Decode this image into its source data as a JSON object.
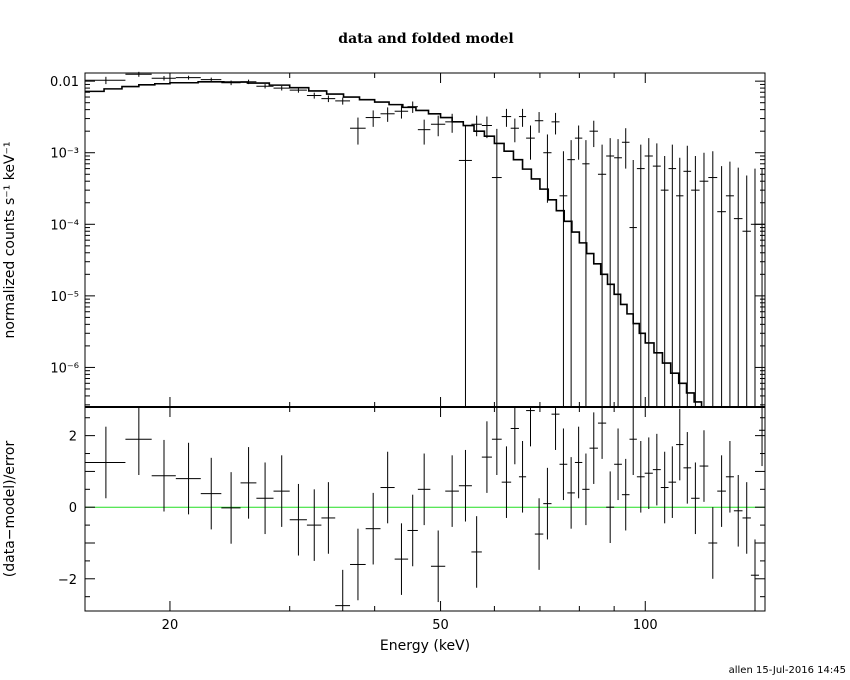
{
  "title": "data and folded model",
  "footer": "allen 15-Jul-2016 14:45",
  "chart_data": [
    {
      "type": "line",
      "panel": "top",
      "title": "data and folded model",
      "ylabel": "normalized counts s⁻¹ keV⁻¹",
      "xlabel": "",
      "xscale": "log",
      "yscale": "log",
      "xlim": [
        15,
        150
      ],
      "ylim": [
        2.8e-07,
        0.013
      ],
      "ytick_labels": [
        "0.01",
        "10⁻³",
        "10⁻⁴",
        "10⁻⁵",
        "10⁻⁶"
      ],
      "series": [
        {
          "kind": "data",
          "points": [
            {
              "x": 16.1,
              "xerr": 1.1,
              "y": 0.0103,
              "yerr": 0.0012
            },
            {
              "x": 18.0,
              "xerr": 0.8,
              "y": 0.0125,
              "yerr": 0.001
            },
            {
              "x": 19.6,
              "xerr": 0.8,
              "y": 0.011,
              "yerr": 0.0008
            },
            {
              "x": 21.3,
              "xerr": 0.9,
              "y": 0.0112,
              "yerr": 0.0007
            },
            {
              "x": 23.0,
              "xerr": 0.8,
              "y": 0.0105,
              "yerr": 0.0007
            },
            {
              "x": 24.6,
              "xerr": 0.8,
              "y": 0.0095,
              "yerr": 0.0007
            },
            {
              "x": 26.1,
              "xerr": 0.7,
              "y": 0.0098,
              "yerr": 0.0007
            },
            {
              "x": 27.6,
              "xerr": 0.8,
              "y": 0.0085,
              "yerr": 0.0006
            },
            {
              "x": 29.2,
              "xerr": 0.8,
              "y": 0.008,
              "yerr": 0.0006
            },
            {
              "x": 30.9,
              "xerr": 0.9,
              "y": 0.0075,
              "yerr": 0.0006
            },
            {
              "x": 32.6,
              "xerr": 0.8,
              "y": 0.0063,
              "yerr": 0.0006
            },
            {
              "x": 34.2,
              "xerr": 0.8,
              "y": 0.0057,
              "yerr": 0.0006
            },
            {
              "x": 35.9,
              "xerr": 0.9,
              "y": 0.0053,
              "yerr": 0.0006
            },
            {
              "x": 37.8,
              "xerr": 1.0,
              "y": 0.0022,
              "yerr": 0.0009
            },
            {
              "x": 39.8,
              "xerr": 1.0,
              "y": 0.0031,
              "yerr": 0.0008
            },
            {
              "x": 41.8,
              "xerr": 1.0,
              "y": 0.0035,
              "yerr": 0.0008
            },
            {
              "x": 43.8,
              "xerr": 1.0,
              "y": 0.0038,
              "yerr": 0.0008
            },
            {
              "x": 45.5,
              "xerr": 0.8,
              "y": 0.0044,
              "yerr": 0.0008
            },
            {
              "x": 47.3,
              "xerr": 1.0,
              "y": 0.0021,
              "yerr": 0.0008
            },
            {
              "x": 49.6,
              "xerr": 1.2,
              "y": 0.0025,
              "yerr": 0.0008
            },
            {
              "x": 52.0,
              "xerr": 1.2,
              "y": 0.0027,
              "yerr": 0.0008
            },
            {
              "x": 54.4,
              "xerr": 1.2,
              "y": 0.00078,
              "yerr_lo": 0.00078,
              "yerr_hi": 0.0016
            },
            {
              "x": 56.5,
              "xerr": 1.0,
              "y": 0.0025,
              "yerr": 0.0008
            },
            {
              "x": 58.5,
              "xerr": 1.0,
              "y": 0.0024,
              "yerr": 0.0008
            },
            {
              "x": 60.5,
              "xerr": 1.0,
              "y": 0.00045,
              "yerr_lo": 0.00045,
              "yerr_hi": 0.0017
            },
            {
              "x": 62.5,
              "xerr": 1.0,
              "y": 0.0032,
              "yerr": 0.0009
            },
            {
              "x": 64.3,
              "xerr": 0.9,
              "y": 0.0022,
              "yerr": 0.0008
            },
            {
              "x": 66.0,
              "xerr": 0.8,
              "y": 0.0032,
              "yerr": 0.0009
            },
            {
              "x": 67.8,
              "xerr": 1.0,
              "y": 0.0016,
              "yerr": 0.0008
            },
            {
              "x": 69.8,
              "xerr": 1.0,
              "y": 0.0028,
              "yerr": 0.0009
            },
            {
              "x": 71.8,
              "xerr": 1.0,
              "y": 0.001,
              "yerr": 0.0008
            },
            {
              "x": 73.8,
              "xerr": 1.0,
              "y": 0.0027,
              "yerr": 0.0009
            },
            {
              "x": 75.8,
              "xerr": 1.0,
              "y": 0.00025,
              "yerr_lo": 0.00025,
              "yerr_hi": 0.0008
            },
            {
              "x": 77.8,
              "xerr": 1.0,
              "y": 0.0008,
              "yerr_lo": 0.0008,
              "yerr_hi": 0.0007
            },
            {
              "x": 79.8,
              "xerr": 1.0,
              "y": 0.0016,
              "yerr": 0.0008
            },
            {
              "x": 81.8,
              "xerr": 1.0,
              "y": 0.0007,
              "yerr_lo": 0.0007,
              "yerr_hi": 0.0008
            },
            {
              "x": 84.0,
              "xerr": 1.2,
              "y": 0.002,
              "yerr": 0.0008
            },
            {
              "x": 86.4,
              "xerr": 1.2,
              "y": 0.0005,
              "yerr_lo": 0.0005,
              "yerr_hi": 0.0008
            },
            {
              "x": 88.8,
              "xerr": 1.2,
              "y": 0.0009,
              "yerr_lo": 0.0009,
              "yerr_hi": 0.0007
            },
            {
              "x": 91.2,
              "xerr": 1.2,
              "y": 0.00085,
              "yerr_lo": 0.00085,
              "yerr_hi": 0.0007
            },
            {
              "x": 93.6,
              "xerr": 1.2,
              "y": 0.0014,
              "yerr": 0.0008
            },
            {
              "x": 96.0,
              "xerr": 1.2,
              "y": 9e-05,
              "yerr_lo": 9e-05,
              "yerr_hi": 0.0007
            },
            {
              "x": 98.5,
              "xerr": 1.3,
              "y": 0.0006,
              "yerr_lo": 0.0006,
              "yerr_hi": 0.0007
            },
            {
              "x": 101.2,
              "xerr": 1.4,
              "y": 0.0009,
              "yerr_lo": 0.0009,
              "yerr_hi": 0.0007
            },
            {
              "x": 104.0,
              "xerr": 1.4,
              "y": 0.00065,
              "yerr_lo": 0.00065,
              "yerr_hi": 0.0007
            },
            {
              "x": 106.8,
              "xerr": 1.4,
              "y": 0.0003,
              "yerr_lo": 0.0003,
              "yerr_hi": 0.0006
            },
            {
              "x": 109.6,
              "xerr": 1.4,
              "y": 0.0006,
              "yerr_lo": 0.0006,
              "yerr_hi": 0.0007
            },
            {
              "x": 112.4,
              "xerr": 1.4,
              "y": 0.00025,
              "yerr_lo": 0.00025,
              "yerr_hi": 0.0006
            },
            {
              "x": 115.3,
              "xerr": 1.5,
              "y": 0.00055,
              "yerr_lo": 0.00055,
              "yerr_hi": 0.0007
            },
            {
              "x": 118.5,
              "xerr": 1.7,
              "y": 0.0003,
              "yerr_lo": 0.0003,
              "yerr_hi": 0.0006
            },
            {
              "x": 122.0,
              "xerr": 1.8,
              "y": 0.0004,
              "yerr_lo": 0.0004,
              "yerr_hi": 0.0006
            },
            {
              "x": 125.7,
              "xerr": 1.9,
              "y": 0.00045,
              "yerr_lo": 0.00045,
              "yerr_hi": 0.0006
            },
            {
              "x": 129.5,
              "xerr": 1.9,
              "y": 0.00015,
              "yerr_lo": 0.00015,
              "yerr_hi": 0.0005
            },
            {
              "x": 133.2,
              "xerr": 1.8,
              "y": 0.00025,
              "yerr_lo": 0.00025,
              "yerr_hi": 0.0005
            },
            {
              "x": 137.0,
              "xerr": 2.0,
              "y": 0.00012,
              "yerr_lo": 0.00012,
              "yerr_hi": 0.0005
            },
            {
              "x": 141.0,
              "xerr": 2.0,
              "y": 8e-05,
              "yerr_lo": 8e-05,
              "yerr_hi": 0.0004
            },
            {
              "x": 145.0,
              "xerr": 2.0,
              "y": 0.0001,
              "yerr_lo": 0.0001,
              "yerr_hi": 0.0005
            },
            {
              "x": 148.5,
              "xerr": 1.5,
              "y": 0.0001,
              "yerr_lo": 0.0001,
              "yerr_hi": 0.0005
            }
          ]
        },
        {
          "kind": "model",
          "x": [
            15,
            16,
            17,
            18,
            19,
            20,
            22,
            24,
            26,
            28,
            30,
            32,
            34,
            36,
            38,
            40,
            42,
            44,
            46,
            48,
            50,
            52,
            54,
            56,
            58,
            60,
            62,
            64,
            66,
            68,
            70,
            72,
            74,
            76,
            78,
            80,
            82,
            84,
            86,
            88,
            90,
            92,
            94,
            96,
            98,
            100,
            103,
            106,
            109,
            112,
            115,
            118,
            121,
            124,
            127,
            130,
            133,
            136,
            139,
            142,
            145,
            148,
            150
          ],
          "y": [
            0.0072,
            0.0078,
            0.0084,
            0.0089,
            0.0092,
            0.0095,
            0.0098,
            0.0097,
            0.0094,
            0.0088,
            0.0081,
            0.0073,
            0.0066,
            0.006,
            0.0055,
            0.0051,
            0.0047,
            0.0043,
            0.0039,
            0.0035,
            0.0031,
            0.0027,
            0.0024,
            0.002,
            0.0017,
            0.00135,
            0.00105,
            0.0008,
            0.00059,
            0.00043,
            0.00031,
            0.00022,
            0.000155,
            0.00011,
            7.8e-05,
            5.5e-05,
            3.9e-05,
            2.8e-05,
            2e-05,
            1.45e-05,
            1.05e-05,
            7.6e-06,
            5.6e-06,
            4.1e-06,
            3e-06,
            2.2e-06,
            1.6e-06,
            1.15e-06,
            8.3e-07,
            6e-07,
            4.4e-07,
            3.3e-07,
            2.8e-07,
            2.8e-07,
            2.8e-07,
            2.8e-07,
            2.8e-07,
            2.8e-07,
            2.8e-07,
            2.8e-07,
            2.8e-07,
            2.8e-07,
            2.8e-07
          ]
        }
      ]
    },
    {
      "type": "scatter",
      "panel": "bottom",
      "xlabel": "Energy (keV)",
      "ylabel": "(data−model)/error",
      "xscale": "log",
      "xlim": [
        15,
        150
      ],
      "ylim": [
        -2.9,
        2.8
      ],
      "xtick_labels": [
        "20",
        "50",
        "100"
      ],
      "ytick_labels": [
        "2",
        "0",
        "−2"
      ],
      "zero_line_color": "#22dd22",
      "points": [
        {
          "x": 16.1,
          "xerr": 1.1,
          "y": 1.25,
          "yerr": 1.0
        },
        {
          "x": 18.0,
          "xerr": 0.8,
          "y": 1.9,
          "yerr": 1.0
        },
        {
          "x": 19.6,
          "xerr": 0.8,
          "y": 0.88,
          "yerr": 1.0
        },
        {
          "x": 21.3,
          "xerr": 0.9,
          "y": 0.8,
          "yerr": 1.0
        },
        {
          "x": 23.0,
          "xerr": 0.8,
          "y": 0.38,
          "yerr": 1.0
        },
        {
          "x": 24.6,
          "xerr": 0.8,
          "y": -0.02,
          "yerr": 1.0
        },
        {
          "x": 26.1,
          "xerr": 0.7,
          "y": 0.68,
          "yerr": 1.0
        },
        {
          "x": 27.6,
          "xerr": 0.8,
          "y": 0.25,
          "yerr": 1.0
        },
        {
          "x": 29.2,
          "xerr": 0.8,
          "y": 0.45,
          "yerr": 1.0
        },
        {
          "x": 30.9,
          "xerr": 0.9,
          "y": -0.35,
          "yerr": 1.0
        },
        {
          "x": 32.6,
          "xerr": 0.8,
          "y": -0.5,
          "yerr": 1.0
        },
        {
          "x": 34.2,
          "xerr": 0.8,
          "y": -0.3,
          "yerr": 1.0
        },
        {
          "x": 35.9,
          "xerr": 0.9,
          "y": -2.75,
          "yerr": 1.0
        },
        {
          "x": 37.8,
          "xerr": 1.0,
          "y": -1.6,
          "yerr": 1.0
        },
        {
          "x": 39.8,
          "xerr": 1.0,
          "y": -0.6,
          "yerr": 1.0
        },
        {
          "x": 41.8,
          "xerr": 1.0,
          "y": 0.55,
          "yerr": 1.0
        },
        {
          "x": 43.8,
          "xerr": 1.0,
          "y": -1.45,
          "yerr": 1.0
        },
        {
          "x": 45.5,
          "xerr": 0.8,
          "y": -0.65,
          "yerr": 1.0
        },
        {
          "x": 47.3,
          "xerr": 1.0,
          "y": 0.5,
          "yerr": 1.0
        },
        {
          "x": 49.6,
          "xerr": 1.2,
          "y": -1.65,
          "yerr": 1.0
        },
        {
          "x": 52.0,
          "xerr": 1.2,
          "y": 0.45,
          "yerr": 1.0
        },
        {
          "x": 54.4,
          "xerr": 1.2,
          "y": 0.6,
          "yerr": 1.0
        },
        {
          "x": 56.5,
          "xerr": 1.0,
          "y": -1.25,
          "yerr": 1.0
        },
        {
          "x": 58.5,
          "xerr": 1.0,
          "y": 1.4,
          "yerr": 1.0
        },
        {
          "x": 60.5,
          "xerr": 1.0,
          "y": 1.9,
          "yerr": 1.0
        },
        {
          "x": 62.5,
          "xerr": 1.0,
          "y": 0.7,
          "yerr": 1.0
        },
        {
          "x": 64.3,
          "xerr": 0.9,
          "y": 2.2,
          "yerr": 1.0
        },
        {
          "x": 66.0,
          "xerr": 0.8,
          "y": 0.85,
          "yerr": 1.0
        },
        {
          "x": 67.8,
          "xerr": 1.0,
          "y": 2.7,
          "yerr": 1.0
        },
        {
          "x": 69.8,
          "xerr": 1.0,
          "y": -0.75,
          "yerr": 1.0
        },
        {
          "x": 71.8,
          "xerr": 1.0,
          "y": 0.1,
          "yerr": 1.0
        },
        {
          "x": 73.8,
          "xerr": 1.0,
          "y": 2.6,
          "yerr": 1.0
        },
        {
          "x": 75.8,
          "xerr": 1.0,
          "y": 1.2,
          "yerr": 1.0
        },
        {
          "x": 77.8,
          "xerr": 1.0,
          "y": 0.4,
          "yerr": 1.0
        },
        {
          "x": 79.8,
          "xerr": 1.0,
          "y": 1.25,
          "yerr": 1.0
        },
        {
          "x": 81.8,
          "xerr": 1.0,
          "y": 0.5,
          "yerr": 1.0
        },
        {
          "x": 84.0,
          "xerr": 1.2,
          "y": 1.65,
          "yerr": 1.0
        },
        {
          "x": 86.4,
          "xerr": 1.2,
          "y": 2.35,
          "yerr": 1.0
        },
        {
          "x": 88.8,
          "xerr": 1.2,
          "y": 0.0,
          "yerr": 1.0
        },
        {
          "x": 91.2,
          "xerr": 1.2,
          "y": 1.2,
          "yerr": 1.0
        },
        {
          "x": 93.6,
          "xerr": 1.2,
          "y": 0.35,
          "yerr": 1.0
        },
        {
          "x": 96.0,
          "xerr": 1.2,
          "y": 1.9,
          "yerr": 1.0
        },
        {
          "x": 98.5,
          "xerr": 1.3,
          "y": 0.85,
          "yerr": 1.0
        },
        {
          "x": 101.2,
          "xerr": 1.4,
          "y": 0.95,
          "yerr": 1.0
        },
        {
          "x": 104.0,
          "xerr": 1.4,
          "y": 1.05,
          "yerr": 1.0
        },
        {
          "x": 106.8,
          "xerr": 1.4,
          "y": 0.55,
          "yerr": 1.0
        },
        {
          "x": 109.6,
          "xerr": 1.4,
          "y": 0.7,
          "yerr": 1.0
        },
        {
          "x": 112.4,
          "xerr": 1.4,
          "y": 1.75,
          "yerr": 1.0
        },
        {
          "x": 115.3,
          "xerr": 1.5,
          "y": 1.1,
          "yerr": 1.0
        },
        {
          "x": 118.5,
          "xerr": 1.7,
          "y": 0.25,
          "yerr": 1.0
        },
        {
          "x": 122.0,
          "xerr": 1.8,
          "y": 1.15,
          "yerr": 1.0
        },
        {
          "x": 125.7,
          "xerr": 1.9,
          "y": -1.0,
          "yerr": 1.0
        },
        {
          "x": 129.5,
          "xerr": 1.9,
          "y": 0.45,
          "yerr": 1.0
        },
        {
          "x": 133.2,
          "xerr": 1.8,
          "y": 0.85,
          "yerr": 1.0
        },
        {
          "x": 137.0,
          "xerr": 2.0,
          "y": -0.1,
          "yerr": 1.0
        },
        {
          "x": 141.0,
          "xerr": 2.0,
          "y": -0.3,
          "yerr": 1.0
        },
        {
          "x": 145.0,
          "xerr": 2.0,
          "y": -1.9,
          "yerr": 1.0
        },
        {
          "x": 148.5,
          "xerr": 1.5,
          "y": 2.15,
          "yerr": 1.0
        }
      ]
    }
  ]
}
